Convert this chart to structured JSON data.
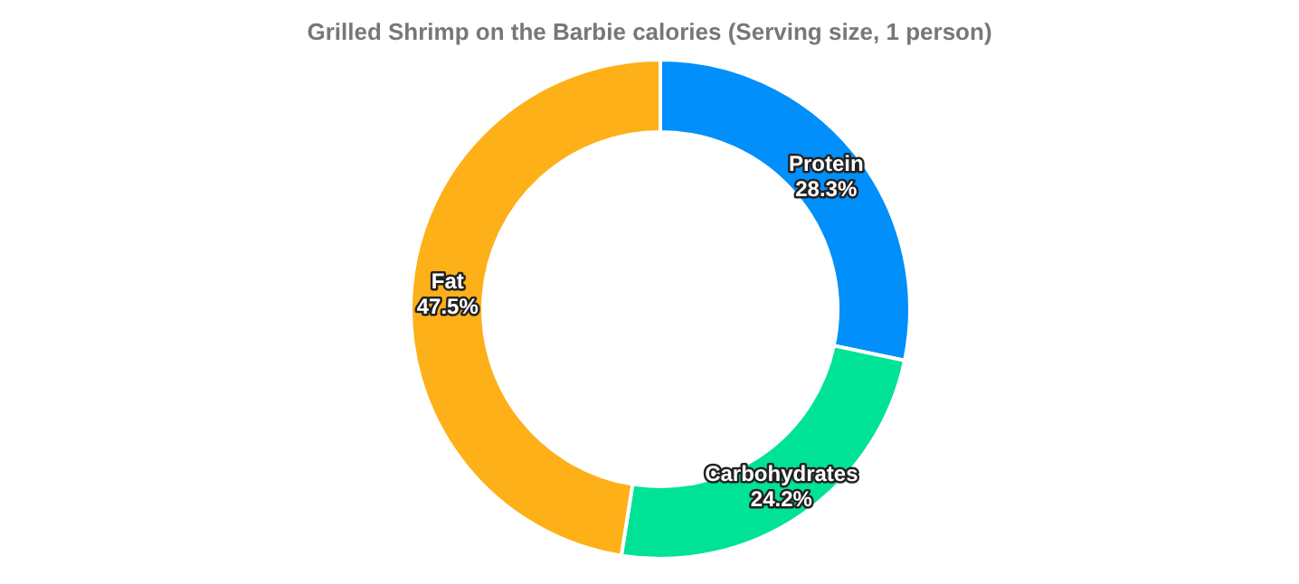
{
  "chart_data": {
    "type": "donut",
    "title": "Grilled Shrimp on the Barbie calories (Serving size, 1 person)",
    "categories": [
      "Protein",
      "Carbohydrates",
      "Fat"
    ],
    "values": [
      28.3,
      24.2,
      47.5
    ],
    "value_labels": [
      "28.3%",
      "24.2%",
      "47.5%"
    ],
    "colors": [
      "#008ffb",
      "#00e396",
      "#feb019"
    ],
    "legend": false
  }
}
